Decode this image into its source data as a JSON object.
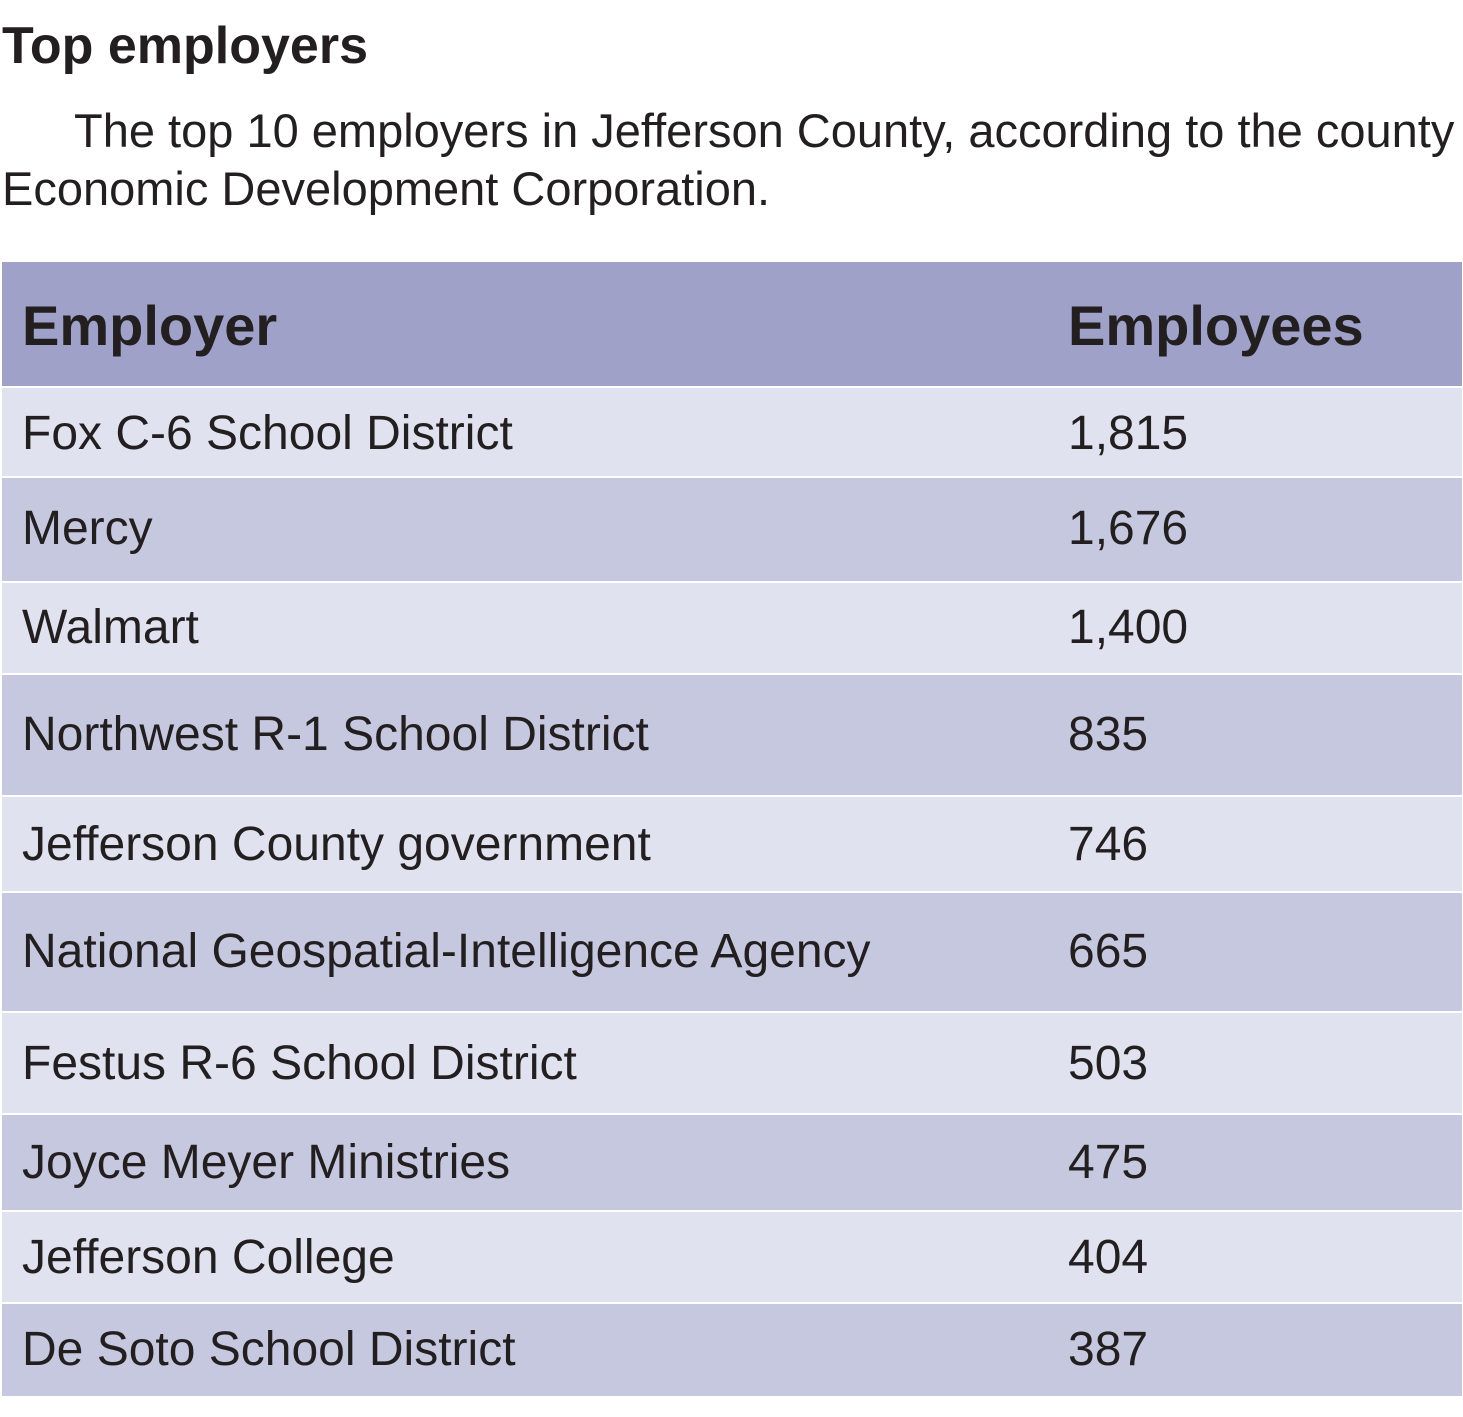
{
  "header": {
    "title": "Top employers",
    "subtitle_line1": "The top 10 employers in Jefferson County, according to the county",
    "subtitle_line2": "Economic Development Corporation."
  },
  "colors": {
    "header_bg": "#9fa1c8",
    "row_light": "#e1e2ef",
    "row_dark": "#c6c8df",
    "text": "#231f20"
  },
  "chart_data": {
    "type": "table",
    "title": "Top employers",
    "subtitle": "The top 10 employers in Jefferson County, according to the county Economic Development Corporation.",
    "columns": [
      "Employer",
      "Employees"
    ],
    "rows": [
      {
        "employer": "Fox C-6 School District",
        "employees": "1,815",
        "value": 1815
      },
      {
        "employer": "Mercy",
        "employees": "1,676",
        "value": 1676
      },
      {
        "employer": "Walmart",
        "employees": "1,400",
        "value": 1400
      },
      {
        "employer": "Northwest R-1 School District",
        "employees": "835",
        "value": 835
      },
      {
        "employer": "Jefferson County government",
        "employees": "746",
        "value": 746
      },
      {
        "employer": "National Geospatial-Intelligence Agency",
        "employees": "665",
        "value": 665
      },
      {
        "employer": "Festus R-6 School District",
        "employees": "503",
        "value": 503
      },
      {
        "employer": "Joyce Meyer Ministries",
        "employees": "475",
        "value": 475
      },
      {
        "employer": "Jefferson College",
        "employees": "404",
        "value": 404
      },
      {
        "employer": "De Soto School District",
        "employees": "387",
        "value": 387
      }
    ]
  }
}
